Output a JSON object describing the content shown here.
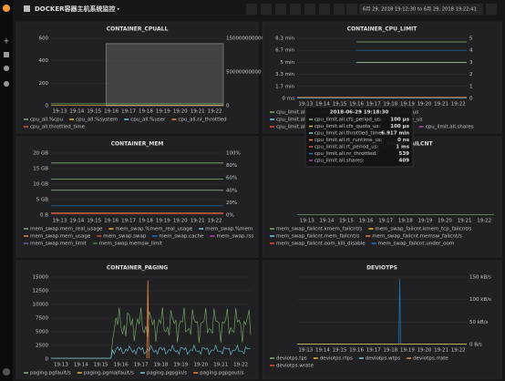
{
  "topbar": {
    "title": "DOCKER容器主机系统监控",
    "time_range": "6月 29, 2018 19:12:30 to 6月 29, 2018 19:22:41"
  },
  "panels": [
    {
      "title": "CONTAINER_CPUALL",
      "y_ticks": [
        "0",
        "200",
        "400",
        "600"
      ],
      "y2_ticks": [
        "0",
        "50000000000",
        "150000000000"
      ],
      "x_ticks": [
        "19:13",
        "19:14",
        "19:15",
        "19:16",
        "19:17",
        "19:18",
        "19:19",
        "19:20",
        "19:21",
        "19:22"
      ],
      "legend": [
        "cpu_all.%cpu",
        "cpu_all.%system",
        "cpu_all.%user",
        "cpu_all.nr_throttled",
        "cpu_all.throttled_time"
      ]
    },
    {
      "title": "CONTAINER_CPU_LIMIT",
      "y_ticks": [
        "0 ms",
        "1.7 min",
        "3.3 min",
        "5 min",
        "6.7 min",
        "8.3 min"
      ],
      "y2_ticks": [
        "0",
        "1",
        "2",
        "3",
        "4",
        "5"
      ],
      "x_ticks": [
        "19:13",
        "19:14",
        "19:15",
        "19:16",
        "19:17",
        "19:18",
        "19:19",
        "19:20",
        "19:21",
        "19:22"
      ],
      "legend": [
        "cpu_limit.all.cfs_period_us",
        "cpu_limit.all.cfs_quota_us",
        "cpu_limit.all.throttled_time",
        "cpu_limit.all.rt_runtime_us",
        "cpu_limit.all.rt_period_us",
        "cpu_limit.all.nr_throttled",
        "cpu_limit.all.shares"
      ]
    },
    {
      "title": "CONTAINER_MEM",
      "y_ticks": [
        "0 B",
        "5 GB",
        "10 GB",
        "15 GB",
        "20 GB"
      ],
      "y2_ticks": [
        "0%",
        "20%",
        "40%",
        "60%",
        "80%",
        "100%"
      ],
      "x_ticks": [
        "19:13",
        "19:14",
        "19:15",
        "19:16",
        "19:17",
        "19:18",
        "19:19",
        "19:20",
        "19:21",
        "19:22"
      ],
      "legend": [
        "mem_swap.mem_real_usage",
        "mem_swap.%mem_real_usage",
        "mem_swap.%mem",
        "mem_swap.mem_usage",
        "mem_swap.swap",
        "mem_swap.cache",
        "mem_swap.rss",
        "mem_swap.mem_limit",
        "mem_swap.memsw_limit"
      ]
    },
    {
      "title": "CONTAINER_MEM_SWAP_FAILCNT",
      "y_ticks": [],
      "y2_ticks": [],
      "x_ticks": [
        "19:13",
        "19:14",
        "19:15",
        "19:16",
        "19:17",
        "19:18",
        "19:19",
        "19:20",
        "19:21",
        "19:22"
      ],
      "legend": [
        "mem_swap_failcnt.kmem_failcnt/s",
        "mem_swap_failcnt.kmem_tcp_failcnt/s",
        "mem_swap_failcnt.mem_failcnt/s",
        "mem_swap_failcnt.memsw_failcnt/s",
        "mem_swap_failcnt.oom_kill_disable",
        "mem_swap_failcnt.under_oom"
      ]
    },
    {
      "title": "CONTAINER_PAGING",
      "y_ticks": [
        "0",
        "2500",
        "5000",
        "7500",
        "10000",
        "12500",
        "15000"
      ],
      "y2_ticks": [],
      "x_ticks": [
        "19:13",
        "19:14",
        "19:15",
        "19:16",
        "19:17",
        "19:18",
        "19:19",
        "19:20",
        "19:21",
        "19:22"
      ],
      "legend": [
        "paging.pgfault/s",
        "paging.pgmajfault/s",
        "paging.pgpgin/s",
        "paging.pgpgout/s"
      ]
    },
    {
      "title": "DEVIOTPS",
      "y_ticks": [],
      "y2_ticks": [
        "0 B/s",
        "50 kB/s",
        "100 kB/s",
        "150 kB/s"
      ],
      "x_ticks": [
        "19:13",
        "19:14",
        "19:15",
        "19:16",
        "19:17",
        "19:18",
        "19:19",
        "19:20",
        "19:21",
        "19:22"
      ],
      "legend": [
        "deviotps.tps",
        "deviotps.rtps",
        "deviotps.wtps",
        "deviotps.rrate",
        "deviotps.wrate"
      ]
    }
  ],
  "tooltip": {
    "time": "2018-06-29 19:18:30",
    "rows": [
      {
        "name": "cpu_limit.all.cfs_period_us:",
        "value": "100 µs"
      },
      {
        "name": "cpu_limit.all.cfs_quota_us:",
        "value": "100 µs"
      },
      {
        "name": "cpu_limit.all.throttled_time:",
        "value": "6.917 min"
      },
      {
        "name": "cpu_limit.all.rt_runtime_us:",
        "value": "0 ns"
      },
      {
        "name": "cpu_limit.all.rt_period_us:",
        "value": "1 ms"
      },
      {
        "name": "cpu_limit.all.nr_throttled:",
        "value": "539"
      },
      {
        "name": "cpu_limit.all.shares:",
        "value": "409"
      }
    ]
  }
}
